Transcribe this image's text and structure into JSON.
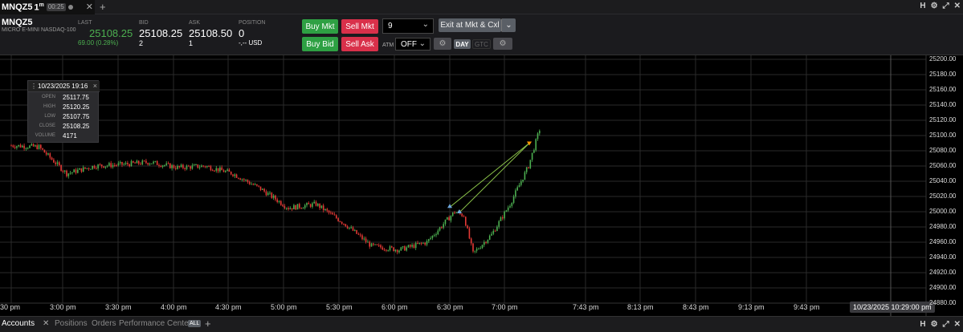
{
  "tab": {
    "symbol": "MNQZ5",
    "timeframe": "1",
    "timeframe_unit": "m",
    "timer": "00:25"
  },
  "window_icons": [
    "H",
    "⚙",
    "⤢",
    "✕"
  ],
  "quote": {
    "symbol": "MNQZ5",
    "description": "MICRO E-MINI NASDAQ-100",
    "last_label": "LAST",
    "last": "25108.25",
    "change": "69.00 (0.28%)",
    "bid_label": "BID",
    "bid": "25108.25",
    "bid_size": "2",
    "ask_label": "ASK",
    "ask": "25108.50",
    "ask_size": "1",
    "position_label": "POSITION",
    "position": "0",
    "position_value": "-,-- USD"
  },
  "trade": {
    "buy_mkt": "Buy Mkt",
    "sell_mkt": "Sell Mkt",
    "quantity": "9",
    "exit": "Exit at Mkt & Cxl",
    "buy_bid": "Buy Bid",
    "sell_ask": "Sell Ask",
    "atm_label": "ATM",
    "atm_value": "OFF",
    "day": "DAY",
    "gtc": "GTC"
  },
  "ohlc": {
    "datetime": "10/23/2025 19:16",
    "open_label": "OPEN",
    "open": "25117.75",
    "high_label": "HIGH",
    "high": "25120.25",
    "low_label": "LOW",
    "low": "25107.75",
    "close_label": "CLOSE",
    "close": "25108.25",
    "volume_label": "VOLUME",
    "volume": "4171"
  },
  "time_axis": [
    "30 pm",
    "3:00 pm",
    "3:30 pm",
    "4:00 pm",
    "4:30 pm",
    "5:00 pm",
    "5:30 pm",
    "6:00 pm",
    "6:30 pm",
    "7:00 pm",
    "7:43 pm",
    "8:13 pm",
    "8:43 pm",
    "9:13 pm",
    "9:43 pm"
  ],
  "crosshair_time": "10/23/2025 10:29:00 pm",
  "price_axis": [
    "25200.00",
    "25180.00",
    "25160.00",
    "25140.00",
    "25120.00",
    "25100.00",
    "25080.00",
    "25060.00",
    "25040.00",
    "25020.00",
    "25000.00",
    "24980.00",
    "24960.00",
    "24940.00",
    "24920.00",
    "24900.00",
    "24880.00"
  ],
  "bottom_tabs": {
    "accounts": "Accounts",
    "positions": "Positions",
    "orders": "Orders",
    "performance": "Performance Center",
    "all": "ALL"
  },
  "chart_data": {
    "type": "candlestick",
    "symbol": "MNQZ5",
    "interval": "1m",
    "ylim": [
      24880,
      25200
    ],
    "close_path": [
      [
        "2:30 pm",
        25087
      ],
      [
        "2:45 pm",
        25085
      ],
      [
        "3:00 pm",
        25050
      ],
      [
        "3:15 pm",
        25060
      ],
      [
        "3:30 pm",
        25062
      ],
      [
        "3:45 pm",
        25065
      ],
      [
        "4:00 pm",
        25058
      ],
      [
        "4:15 pm",
        25060
      ],
      [
        "4:30 pm",
        25050
      ],
      [
        "4:45 pm",
        25030
      ],
      [
        "5:00 pm",
        25005
      ],
      [
        "5:15 pm",
        25010
      ],
      [
        "5:30 pm",
        24985
      ],
      [
        "5:45 pm",
        24955
      ],
      [
        "6:00 pm",
        24950
      ],
      [
        "6:15 pm",
        24960
      ],
      [
        "6:30 pm",
        25000
      ],
      [
        "6:35 pm",
        24995
      ],
      [
        "6:40 pm",
        24945
      ],
      [
        "6:50 pm",
        24970
      ],
      [
        "7:00 pm",
        25010
      ],
      [
        "7:10 pm",
        25060
      ],
      [
        "7:16 pm",
        25108
      ]
    ],
    "colors": {
      "up": "#4caf50",
      "down": "#e53935",
      "grid": "#2a2a2a",
      "trendline": "#8bc34a"
    },
    "grid": true
  }
}
